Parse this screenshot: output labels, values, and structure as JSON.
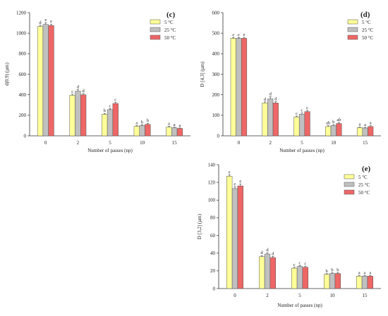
{
  "figure": {
    "colors": {
      "5 °C": "#ffff99",
      "25 °C": "#c0c0c0",
      "50 °C": "#ee6666"
    }
  },
  "chart_data": [
    {
      "type": "bar",
      "panel": "(c)",
      "xlabel": "Number of passes (np)",
      "ylabel": "d(0.9) (µm)",
      "categories": [
        "0",
        "2",
        "5",
        "10",
        "15"
      ],
      "ylim": [
        0,
        1200
      ],
      "yticks": [
        0,
        200,
        400,
        600,
        800,
        1000,
        1200
      ],
      "legend": "top-right",
      "series": [
        {
          "name": "5 °C",
          "values": [
            1065,
            395,
            210,
            92,
            85
          ],
          "errors": [
            12,
            10,
            8,
            6,
            6
          ],
          "letters": [
            "d",
            "c",
            "b",
            "a",
            "a"
          ]
        },
        {
          "name": "25 °C",
          "values": [
            1085,
            435,
            255,
            100,
            78
          ],
          "errors": [
            18,
            14,
            10,
            8,
            6
          ],
          "letters": [
            "e",
            "d",
            "c",
            "b",
            "a"
          ]
        },
        {
          "name": "50 °C",
          "values": [
            1075,
            400,
            315,
            112,
            72
          ],
          "errors": [
            14,
            12,
            10,
            10,
            5
          ],
          "letters": [
            "e",
            "d",
            "c",
            "b",
            "a"
          ]
        }
      ]
    },
    {
      "type": "bar",
      "panel": "(d)",
      "xlabel": "Number of passes (np)",
      "ylabel": "D [4,3] (µm)",
      "categories": [
        "0",
        "2",
        "5",
        "10",
        "15"
      ],
      "ylim": [
        0,
        600
      ],
      "yticks": [
        0,
        100,
        200,
        300,
        400,
        500,
        600
      ],
      "legend": "top-right",
      "series": [
        {
          "name": "5 °C",
          "values": [
            475,
            160,
            92,
            45,
            40
          ],
          "errors": [
            4,
            5,
            4,
            4,
            3
          ],
          "letters": [
            "e",
            "d",
            "c",
            "ab",
            "a"
          ]
        },
        {
          "name": "25 °C",
          "values": [
            475,
            180,
            105,
            50,
            38
          ],
          "errors": [
            4,
            10,
            6,
            5,
            3
          ],
          "letters": [
            "e",
            "d",
            "c",
            "b",
            "a"
          ]
        },
        {
          "name": "50 °C",
          "values": [
            475,
            160,
            118,
            60,
            45
          ],
          "errors": [
            5,
            6,
            6,
            5,
            4
          ],
          "letters": [
            "e",
            "d",
            "c",
            "ab",
            "a"
          ]
        }
      ]
    },
    {
      "type": "bar",
      "panel": "(e)",
      "xlabel": "Number of passes (np)",
      "ylabel": "D [3,2] (µm)",
      "categories": [
        "0",
        "2",
        "5",
        "10",
        "15"
      ],
      "ylim": [
        0,
        140
      ],
      "yticks": [
        0,
        20,
        40,
        60,
        80,
        100,
        120,
        140
      ],
      "legend": "top-right",
      "series": [
        {
          "name": "5 °C",
          "values": [
            127,
            36,
            23,
            16,
            14
          ],
          "errors": [
            1.5,
            1.2,
            1,
            0.8,
            0.6
          ],
          "letters": [
            "e",
            "d",
            "c",
            "b",
            "a"
          ]
        },
        {
          "name": "25 °C",
          "values": [
            113,
            39,
            25,
            17,
            14
          ],
          "errors": [
            2,
            1.5,
            1,
            0.8,
            0.6
          ],
          "letters": [
            "e",
            "d",
            "c",
            "b",
            "a"
          ]
        },
        {
          "name": "50 °C",
          "values": [
            116,
            35,
            24,
            17,
            14
          ],
          "errors": [
            2,
            1.2,
            1,
            0.8,
            0.6
          ],
          "letters": [
            "e",
            "d",
            "c",
            "b",
            "a"
          ]
        }
      ]
    }
  ]
}
